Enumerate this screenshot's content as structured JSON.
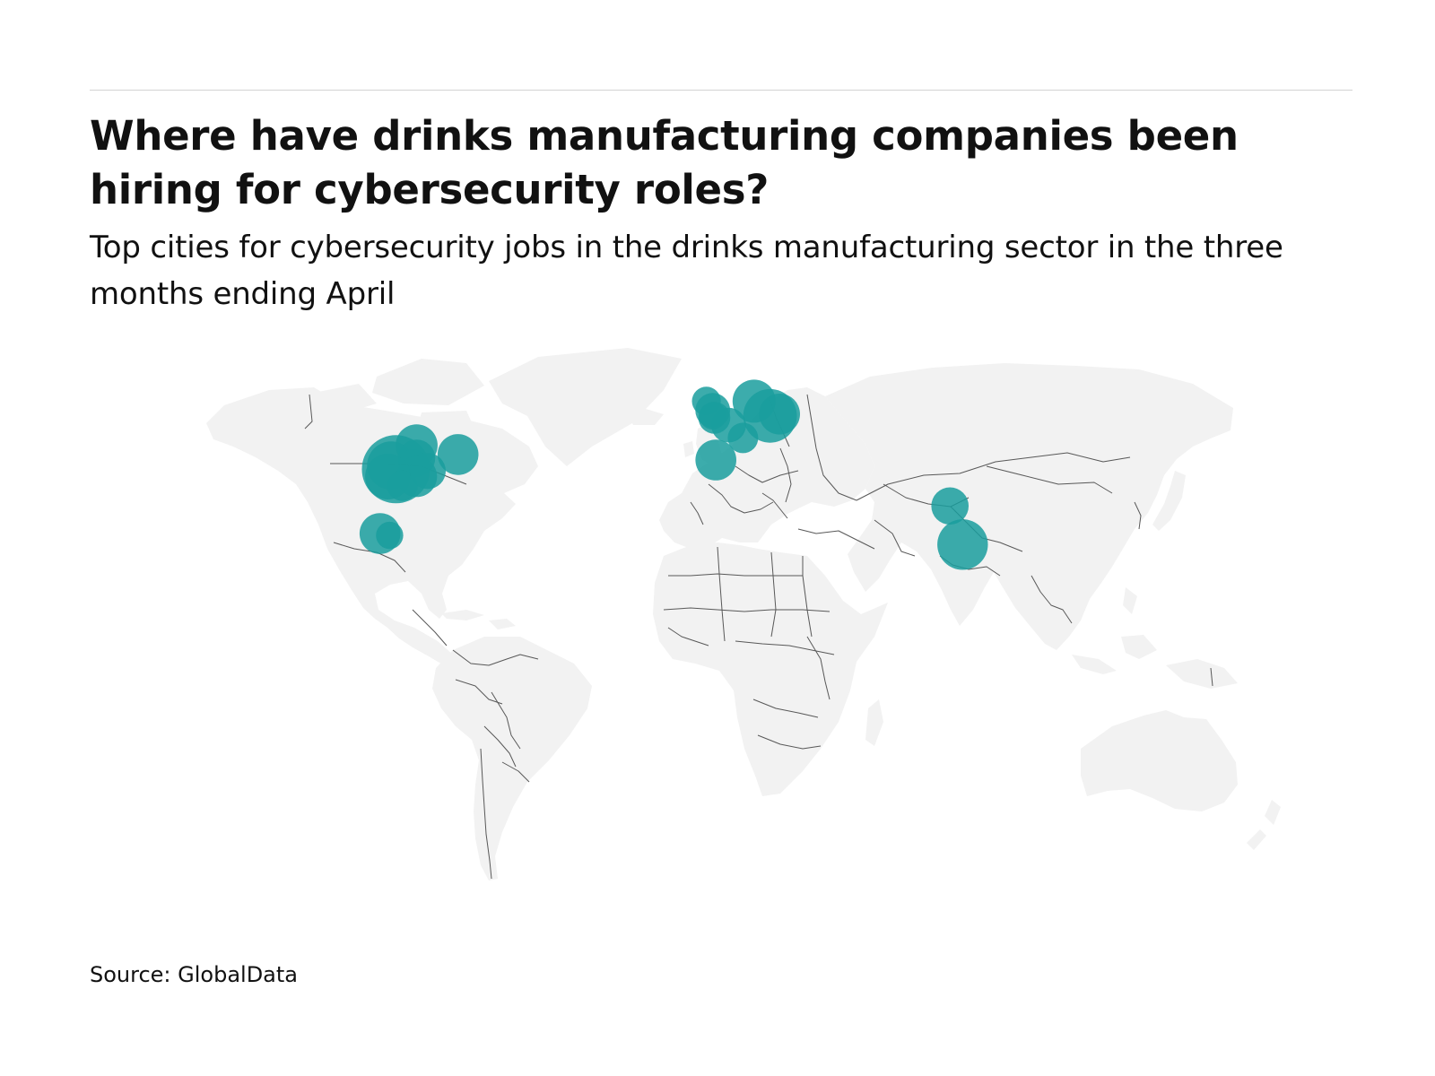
{
  "header": {
    "title": "Where have drinks manufacturing companies been hiring for cybersecurity roles?",
    "subtitle": "Top cities for cybersecurity jobs in the drinks manufacturing sector in the three months ending April"
  },
  "footer": {
    "source": "Source: GlobalData"
  },
  "map": {
    "type": "proportional-symbol world map",
    "land_color": "#f2f2f2",
    "border_color": "#585858",
    "bubble_color": "#1a9e9e",
    "bubble_opacity": 0.85,
    "bubbles": [
      {
        "region": "United States",
        "lon": -101,
        "lat": 37.5,
        "relative_size": 1.0
      },
      {
        "region": "United States",
        "lon": -102.5,
        "lat": 38.5,
        "relative_size": 0.5
      },
      {
        "region": "United States",
        "lon": -103.5,
        "lat": 35.5,
        "relative_size": 0.45
      },
      {
        "region": "United States",
        "lon": -94.5,
        "lat": 44.0,
        "relative_size": 0.38
      },
      {
        "region": "United States",
        "lon": -94.5,
        "lat": 40.5,
        "relative_size": 0.3
      },
      {
        "region": "United States",
        "lon": -95.5,
        "lat": 39.0,
        "relative_size": 0.18
      },
      {
        "region": "United States",
        "lon": -81.5,
        "lat": 41.5,
        "relative_size": 0.36
      },
      {
        "region": "United States",
        "lon": -94.5,
        "lat": 35.5,
        "relative_size": 0.36
      },
      {
        "region": "United States",
        "lon": -91.0,
        "lat": 37.0,
        "relative_size": 0.28
      },
      {
        "region": "United States",
        "lon": -99.0,
        "lat": 33.0,
        "relative_size": 0.2
      },
      {
        "region": "Mexico",
        "lon": -106.0,
        "lat": 20.0,
        "relative_size": 0.36
      },
      {
        "region": "Mexico",
        "lon": -103.0,
        "lat": 19.5,
        "relative_size": 0.16
      },
      {
        "region": "United Kingdom",
        "lon": -3.5,
        "lat": 56.0,
        "relative_size": 0.18
      },
      {
        "region": "United Kingdom",
        "lon": -1.5,
        "lat": 53.5,
        "relative_size": 0.26
      },
      {
        "region": "United Kingdom",
        "lon": -1.0,
        "lat": 51.5,
        "relative_size": 0.22
      },
      {
        "region": "United Kingdom",
        "lon": -1.5,
        "lat": 52.0,
        "relative_size": 0.16
      },
      {
        "region": "Belgium",
        "lon": 3.5,
        "lat": 49.5,
        "relative_size": 0.26
      },
      {
        "region": "Switzerland",
        "lon": 8.0,
        "lat": 46.0,
        "relative_size": 0.2
      },
      {
        "region": "Spain",
        "lon": -0.5,
        "lat": 40.0,
        "relative_size": 0.36
      },
      {
        "region": "Denmark",
        "lon": 11.5,
        "lat": 56.0,
        "relative_size": 0.4
      },
      {
        "region": "Poland",
        "lon": 16.5,
        "lat": 52.0,
        "relative_size": 0.62
      },
      {
        "region": "Poland",
        "lon": 19.5,
        "lat": 52.5,
        "relative_size": 0.36
      },
      {
        "region": "India",
        "lon": 73.0,
        "lat": 27.5,
        "relative_size": 0.3
      },
      {
        "region": "India",
        "lon": 77.0,
        "lat": 17.0,
        "relative_size": 0.55
      }
    ]
  }
}
